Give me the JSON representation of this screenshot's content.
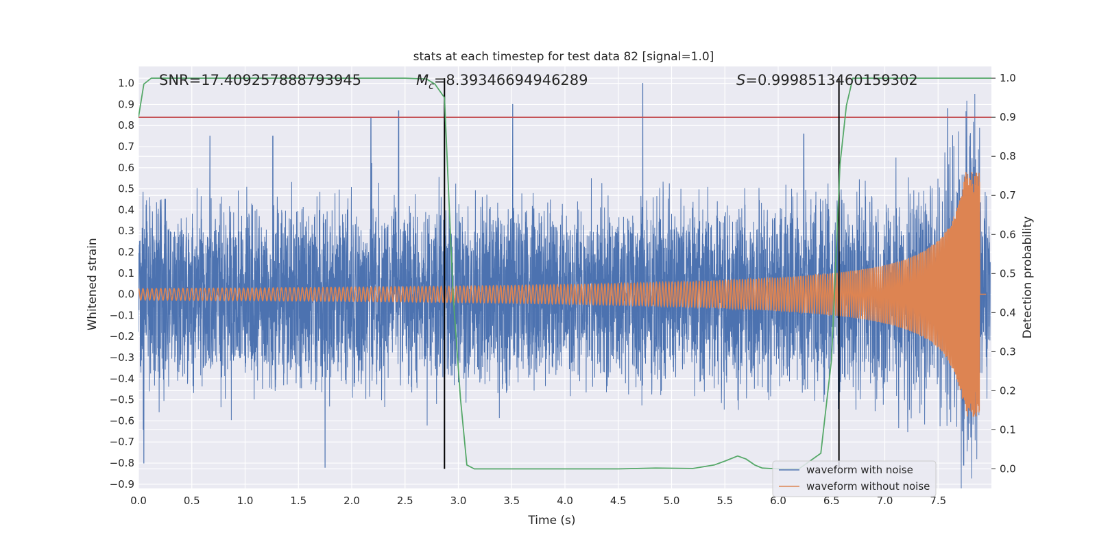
{
  "chart_data": {
    "type": "line",
    "title": "stats at each timestep for test data 82 [signal=1.0]",
    "xlabel": "Time (s)",
    "ylabel": "Whitened strain",
    "y2label": "Detection probability",
    "xlim": [
      0.0,
      8.0
    ],
    "ylim": [
      -0.92,
      1.08
    ],
    "y2lim": [
      -0.05,
      1.03
    ],
    "xticks": [
      "0.0",
      "0.5",
      "1.0",
      "1.5",
      "2.0",
      "2.5",
      "3.0",
      "3.5",
      "4.0",
      "4.5",
      "5.0",
      "5.5",
      "6.0",
      "6.5",
      "7.0",
      "7.5"
    ],
    "yticks": [
      "1.0",
      "0.9",
      "0.8",
      "0.7",
      "0.6",
      "0.5",
      "0.4",
      "0.3",
      "0.2",
      "0.1",
      "0.0",
      "−0.1",
      "−0.2",
      "−0.3",
      "−0.4",
      "−0.5",
      "−0.6",
      "−0.7",
      "−0.8",
      "−0.9"
    ],
    "y2ticks": [
      "1.0",
      "0.9",
      "0.8",
      "0.7",
      "0.6",
      "0.5",
      "0.4",
      "0.3",
      "0.2",
      "0.1",
      "0.0"
    ],
    "grid": true,
    "legend_position": "lower-right",
    "annotations": {
      "snr": "SNR=17.409257888793945",
      "mc_symbol": "M",
      "mc_sub": "c",
      "mc_value": "=8.39346694946289",
      "s_symbol": "S",
      "s_value": "=0.9998513460159302"
    },
    "vertical_lines_x": [
      2.87,
      6.57
    ],
    "threshold": 0.9,
    "series": [
      {
        "name": "waveform with noise",
        "color": "#4c72b0",
        "envelope": {
          "typical_amplitude": 0.42,
          "peak_max": 1.0,
          "peak_min": -0.82
        },
        "spikes": [
          {
            "x": 0.05,
            "y": -0.8
          },
          {
            "x": 0.67,
            "y": 0.75
          },
          {
            "x": 1.26,
            "y": 0.75
          },
          {
            "x": 1.75,
            "y": -0.82
          },
          {
            "x": 2.18,
            "y": 0.84
          },
          {
            "x": 2.44,
            "y": 0.87
          },
          {
            "x": 3.51,
            "y": 0.9
          },
          {
            "x": 4.73,
            "y": 1.0
          },
          {
            "x": 6.24,
            "y": 0.76
          },
          {
            "x": 7.59,
            "y": 0.88
          },
          {
            "x": 7.74,
            "y": -0.81
          },
          {
            "x": 7.8,
            "y": 0.75
          }
        ]
      },
      {
        "name": "waveform without noise",
        "color": "#dd8452",
        "chirp": {
          "t_end": 7.89,
          "amp_start": 0.045,
          "amp_end": 0.58,
          "cycles": 300
        }
      },
      {
        "name": "detection probability",
        "color": "#55a868",
        "axis": "right",
        "x": [
          0.0,
          0.05,
          0.12,
          0.5,
          1.0,
          1.5,
          2.0,
          2.5,
          2.7,
          2.78,
          2.87,
          2.95,
          3.02,
          3.08,
          3.15,
          3.5,
          4.0,
          4.5,
          4.85,
          5.2,
          5.4,
          5.5,
          5.62,
          5.7,
          5.78,
          5.85,
          6.0,
          6.2,
          6.4,
          6.5,
          6.58,
          6.64,
          6.7,
          7.0,
          7.5,
          8.0
        ],
        "y": [
          0.9,
          0.985,
          1.0,
          1.0,
          1.0,
          1.0,
          1.0,
          1.0,
          0.998,
          0.985,
          0.95,
          0.45,
          0.18,
          0.01,
          0.0,
          0.0,
          0.0,
          0.0,
          0.002,
          0.001,
          0.01,
          0.02,
          0.033,
          0.025,
          0.01,
          0.002,
          0.0,
          0.001,
          0.04,
          0.28,
          0.78,
          0.93,
          1.0,
          1.0,
          1.0,
          1.0
        ]
      },
      {
        "name": "threshold",
        "color": "#c44e52",
        "axis": "right",
        "x": [
          0.0,
          8.0
        ],
        "y": [
          0.9,
          0.9
        ]
      }
    ]
  }
}
